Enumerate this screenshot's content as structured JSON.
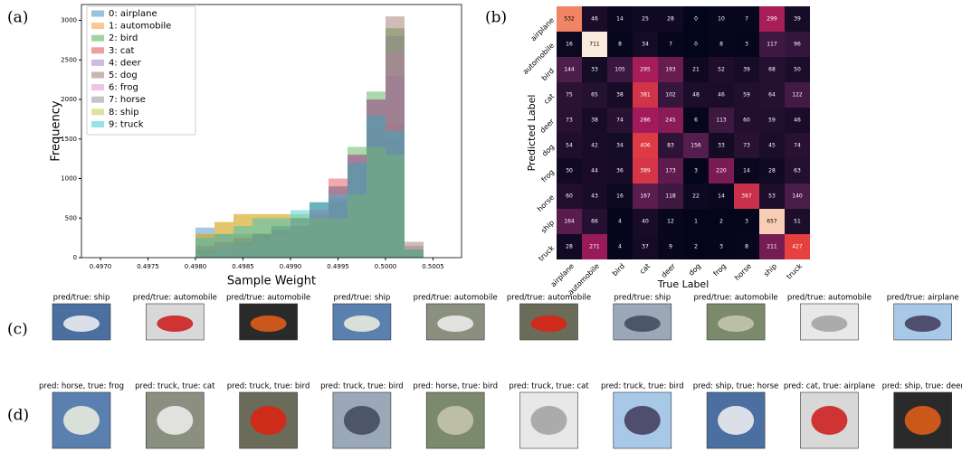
{
  "panel_labels": [
    "(a)",
    "(b)",
    "(c)",
    "(d)"
  ],
  "chart_data": [
    {
      "type": "histogram",
      "xlabel": "Sample Weight",
      "ylabel": "Frequency",
      "bins": [
        0.498,
        0.4982,
        0.4984,
        0.4986,
        0.4988,
        0.499,
        0.4992,
        0.4994,
        0.4996,
        0.4998,
        0.5,
        0.5002,
        0.5004
      ],
      "series": [
        {
          "name": "0: airplane",
          "color": "#1f77b4",
          "values": [
            380,
            300,
            300,
            300,
            350,
            400,
            450,
            500,
            800,
            1500,
            1200,
            100
          ]
        },
        {
          "name": "1: automobile",
          "color": "#ff7f0e",
          "values": [
            300,
            450,
            550,
            550,
            550,
            500,
            500,
            500,
            700,
            1600,
            1700,
            100
          ]
        },
        {
          "name": "2: bird",
          "color": "#2ca02c",
          "values": [
            100,
            100,
            200,
            300,
            400,
            500,
            700,
            900,
            1400,
            2100,
            2900,
            100
          ]
        },
        {
          "name": "3: cat",
          "color": "#d62728",
          "values": [
            150,
            200,
            250,
            300,
            350,
            400,
            600,
            1000,
            1300,
            1800,
            1500,
            100
          ]
        },
        {
          "name": "4: deer",
          "color": "#9467bd",
          "values": [
            100,
            150,
            200,
            300,
            400,
            500,
            700,
            900,
            1300,
            2000,
            2300,
            100
          ]
        },
        {
          "name": "5: dog",
          "color": "#8c564b",
          "values": [
            50,
            100,
            150,
            200,
            300,
            400,
            500,
            700,
            1200,
            2000,
            3050,
            200
          ]
        },
        {
          "name": "6: frog",
          "color": "#e377c2",
          "values": [
            50,
            100,
            150,
            200,
            300,
            450,
            600,
            800,
            1300,
            2000,
            2600,
            100
          ]
        },
        {
          "name": "7: horse",
          "color": "#7f7f7f",
          "values": [
            50,
            100,
            150,
            200,
            300,
            400,
            550,
            750,
            1300,
            2000,
            2800,
            150
          ]
        },
        {
          "name": "8: ship",
          "color": "#bcbd22",
          "values": [
            300,
            450,
            550,
            550,
            550,
            550,
            500,
            500,
            800,
            1400,
            1300,
            100
          ]
        },
        {
          "name": "9: truck",
          "color": "#17becf",
          "values": [
            250,
            300,
            400,
            500,
            500,
            600,
            700,
            800,
            1200,
            1800,
            1600,
            100
          ]
        }
      ],
      "xlim": [
        0.4968,
        0.5008
      ],
      "xticks": [
        {
          "value": 0.497,
          "label": "0.4970"
        },
        {
          "value": 0.4975,
          "label": "0.4975"
        },
        {
          "value": 0.498,
          "label": "0.4980"
        },
        {
          "value": 0.4985,
          "label": "0.4985"
        },
        {
          "value": 0.499,
          "label": "0.4990"
        },
        {
          "value": 0.4995,
          "label": "0.4995"
        },
        {
          "value": 0.5,
          "label": "0.5000"
        },
        {
          "value": 0.5005,
          "label": "0.5005"
        }
      ],
      "ylim": [
        0,
        3200
      ],
      "yticks": [
        0,
        500,
        1000,
        1500,
        2000,
        2500,
        3000
      ],
      "legend": "upper left"
    },
    {
      "type": "heatmap",
      "xlabel": "True Label",
      "ylabel": "Predicted Label",
      "cmap": "rocket",
      "categories": [
        "airplane",
        "automobile",
        "bird",
        "cat",
        "deer",
        "dog",
        "frog",
        "horse",
        "ship",
        "truck"
      ],
      "values": [
        [
          532,
          46,
          14,
          25,
          28,
          0,
          10,
          7,
          299,
          39
        ],
        [
          16,
          711,
          8,
          34,
          7,
          0,
          8,
          3,
          117,
          96
        ],
        [
          144,
          33,
          105,
          295,
          193,
          21,
          52,
          39,
          68,
          50
        ],
        [
          75,
          65,
          38,
          381,
          102,
          48,
          46,
          59,
          64,
          122
        ],
        [
          73,
          38,
          74,
          286,
          245,
          6,
          113,
          60,
          59,
          46
        ],
        [
          54,
          42,
          34,
          406,
          83,
          156,
          33,
          73,
          45,
          74
        ],
        [
          30,
          44,
          36,
          389,
          173,
          3,
          220,
          14,
          28,
          63
        ],
        [
          60,
          43,
          16,
          167,
          118,
          22,
          14,
          367,
          53,
          140
        ],
        [
          164,
          66,
          4,
          40,
          12,
          1,
          2,
          3,
          657,
          51
        ],
        [
          28,
          271,
          4,
          37,
          9,
          2,
          3,
          8,
          211,
          427
        ]
      ]
    }
  ],
  "image_rows": [
    {
      "captions": [
        "pred/true: ship",
        "pred/true: automobile",
        "pred/true: automobile",
        "pred/true: ship",
        "pred/true: automobile",
        "pred/true: automobile",
        "pred/true: ship",
        "pred/true: automobile",
        "pred/true: automobile",
        "pred/true: airplane"
      ]
    },
    {
      "captions": [
        "pred: horse, true: frog",
        "pred: truck, true: cat",
        "pred: truck, true: bird",
        "pred: truck, true: bird",
        "pred: horse, true: bird",
        "pred: truck, true: cat",
        "pred: truck, true: bird",
        "pred: ship, true: horse",
        "pred: cat, true: airplane",
        "pred: ship, true: deer"
      ]
    }
  ]
}
